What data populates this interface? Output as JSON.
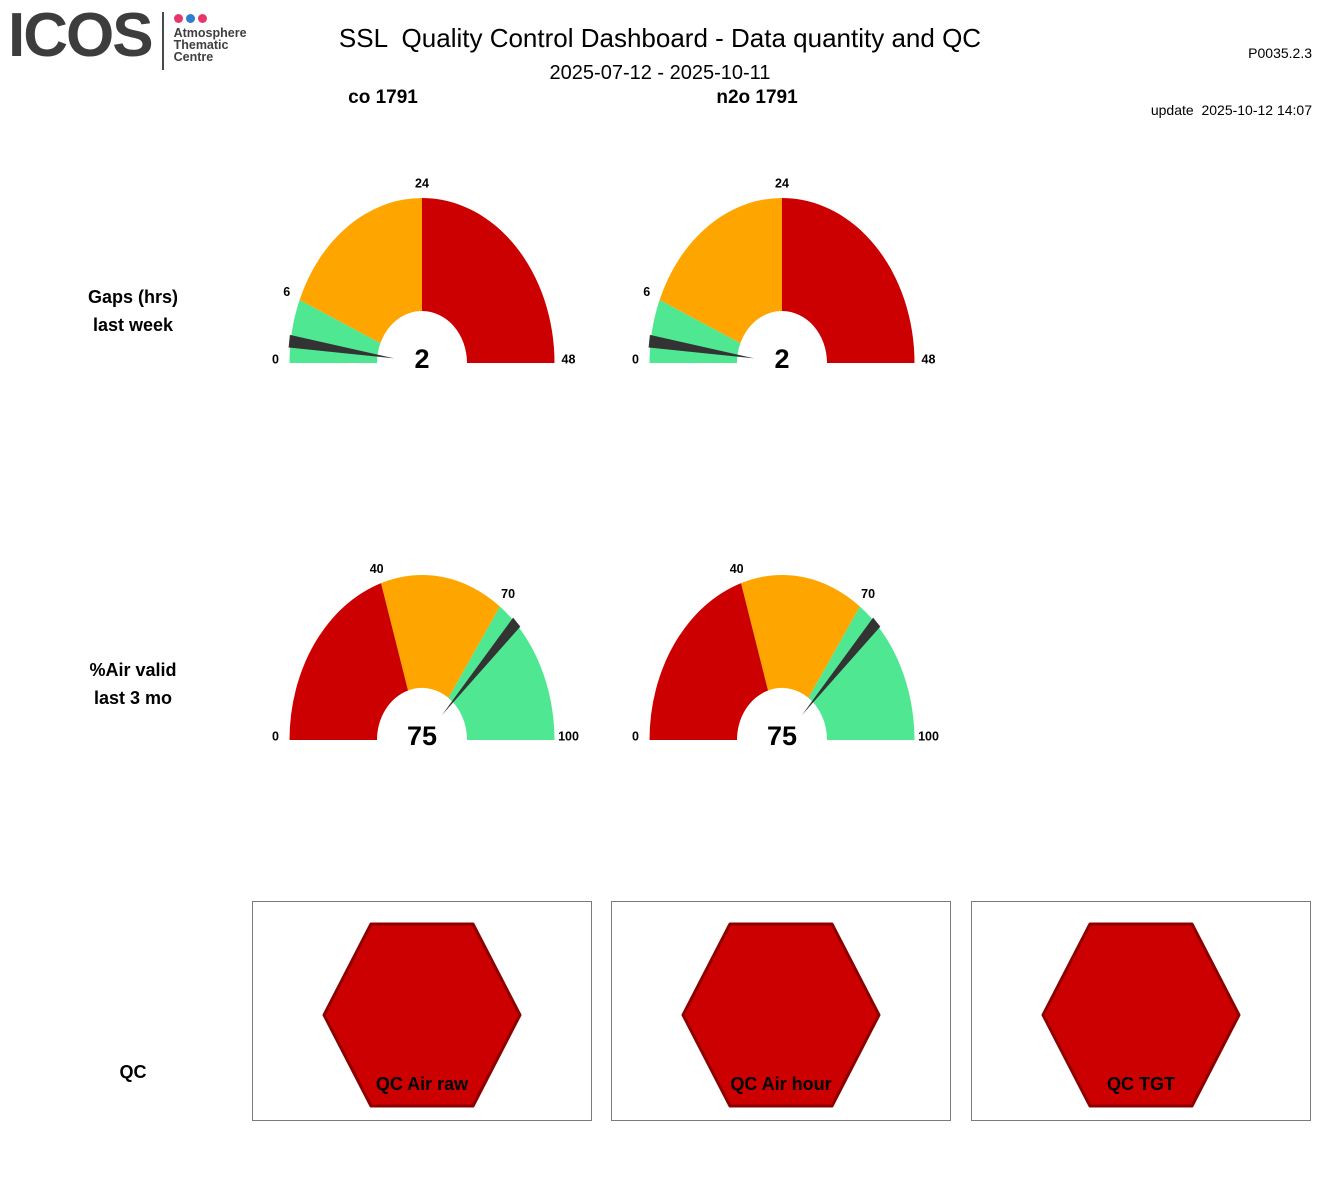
{
  "header": {
    "logo": {
      "text": "ICOS",
      "subtext_lines": [
        "Atmosphere",
        "Thematic",
        "Centre"
      ],
      "dot_colors": [
        "#e7356e",
        "#2d7dd2",
        "#e7356e"
      ]
    },
    "title": "SSL  Quality Control Dashboard - Data quantity and QC",
    "subtitle": "2025-07-12 - 2025-10-11",
    "version": "P0035.2.3",
    "update_line": "update  2025-10-12 14:07"
  },
  "columns": [
    {
      "label": "co 1791"
    },
    {
      "label": "n2o 1791"
    }
  ],
  "row_labels": [
    [
      "Gaps (hrs)",
      "last week"
    ],
    [
      "%Air valid",
      "last 3 mo"
    ],
    [
      "QC"
    ]
  ],
  "chart_data": {
    "type": "gauge-dashboard",
    "station": "SSL",
    "gauges": [
      {
        "row": "Gaps (hrs) last week",
        "column": "co 1791",
        "min": 0,
        "max": 48,
        "value": 2,
        "ticks": [
          0,
          6,
          24,
          48
        ],
        "bands": [
          {
            "from": 0,
            "to": 6,
            "color": "#50e793"
          },
          {
            "from": 6,
            "to": 24,
            "color": "#ffa500"
          },
          {
            "from": 24,
            "to": 48,
            "color": "#cc0000"
          }
        ]
      },
      {
        "row": "Gaps (hrs) last week",
        "column": "n2o 1791",
        "min": 0,
        "max": 48,
        "value": 2,
        "ticks": [
          0,
          6,
          24,
          48
        ],
        "bands": [
          {
            "from": 0,
            "to": 6,
            "color": "#50e793"
          },
          {
            "from": 6,
            "to": 24,
            "color": "#ffa500"
          },
          {
            "from": 24,
            "to": 48,
            "color": "#cc0000"
          }
        ]
      },
      {
        "row": "%Air valid last 3 mo",
        "column": "co 1791",
        "min": 0,
        "max": 100,
        "value": 75,
        "ticks": [
          0,
          40,
          70,
          100
        ],
        "bands": [
          {
            "from": 0,
            "to": 40,
            "color": "#cc0000"
          },
          {
            "from": 40,
            "to": 70,
            "color": "#ffa500"
          },
          {
            "from": 70,
            "to": 100,
            "color": "#50e793"
          }
        ]
      },
      {
        "row": "%Air valid last 3 mo",
        "column": "n2o 1791",
        "min": 0,
        "max": 100,
        "value": 75,
        "ticks": [
          0,
          40,
          70,
          100
        ],
        "bands": [
          {
            "from": 0,
            "to": 40,
            "color": "#cc0000"
          },
          {
            "from": 40,
            "to": 70,
            "color": "#ffa500"
          },
          {
            "from": 70,
            "to": 100,
            "color": "#50e793"
          }
        ]
      }
    ],
    "qc_hexagons": [
      {
        "label": "QC Air raw",
        "color": "#cc0000"
      },
      {
        "label": "QC Air hour",
        "color": "#cc0000"
      },
      {
        "label": "QC TGT",
        "color": "#cc0000"
      }
    ]
  },
  "styles": {
    "needle_color": "#333333",
    "hex_border": "#8e0000",
    "box_border": "#7a7a7a"
  }
}
